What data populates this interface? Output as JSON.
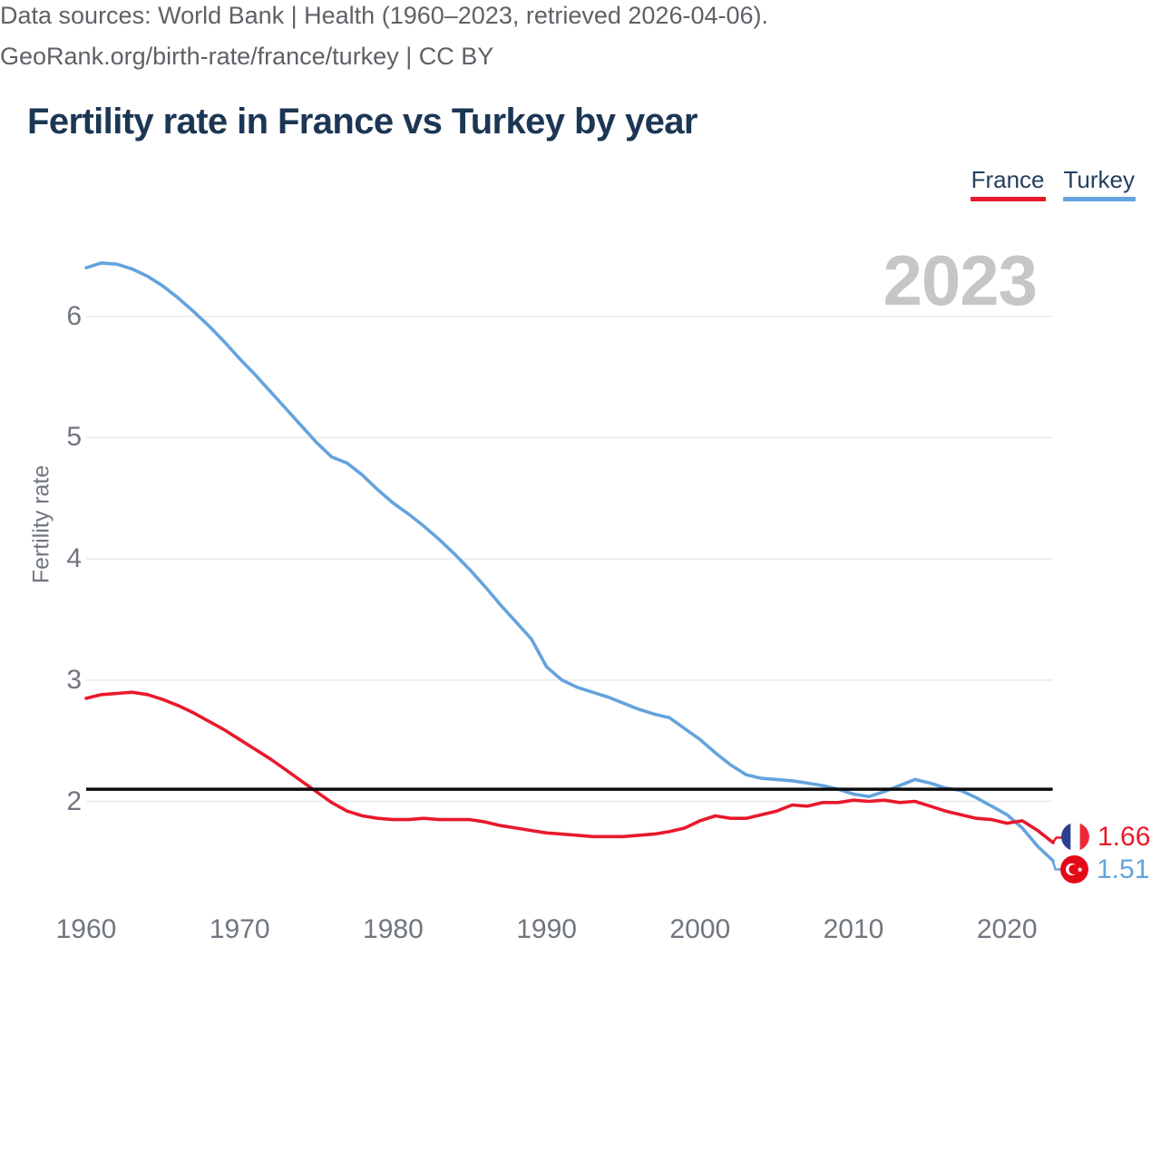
{
  "title": "Fertility rate in France vs Turkey by year",
  "watermark_year": "2023",
  "legend": {
    "items": [
      {
        "label": "France",
        "color": "#e8192b"
      },
      {
        "label": "Turkey",
        "color": "#64a3dd"
      }
    ]
  },
  "end_labels": [
    {
      "series": "France",
      "value": "1.66",
      "flag_icon": "france-flag-icon",
      "text_color": "#e8192b"
    },
    {
      "series": "Turkey",
      "value": "1.51",
      "flag_icon": "turkey-flag-icon",
      "text_color": "#64a3dd"
    }
  ],
  "footer": {
    "line1": "Data sources: World Bank | Health (1960–2023, retrieved 2026-04-06).",
    "line2": "GeoRank.org/birth-rate/france/turkey | CC BY"
  },
  "colors": {
    "france": "#e8192b",
    "turkey": "#64a3dd",
    "reference_line": "#0a0a0a",
    "grid": "#e9e9e9",
    "title_text": "#1c3654",
    "axis_text": "#70767f",
    "footer_text": "#5e6166",
    "watermark": "#c6c6c6",
    "france_flag": [
      "#2a3f90",
      "#ffffff",
      "#ed2939"
    ],
    "turkey_flag": "#e30a17"
  },
  "chart_data": {
    "type": "line",
    "title": "Fertility rate in France vs Turkey by year",
    "xlabel": "",
    "ylabel": "Fertility rate",
    "grid": true,
    "legend_position": "top-right",
    "xticks": [
      1960,
      1970,
      1980,
      1990,
      2000,
      2010,
      2020
    ],
    "yticks": [
      2,
      3,
      4,
      5,
      6
    ],
    "xlim": [
      1960,
      2023
    ],
    "ylim": [
      1.4,
      6.6
    ],
    "reference_line": 2.1,
    "x": [
      1960,
      1961,
      1962,
      1963,
      1964,
      1965,
      1966,
      1967,
      1968,
      1969,
      1970,
      1971,
      1972,
      1973,
      1974,
      1975,
      1976,
      1977,
      1978,
      1979,
      1980,
      1981,
      1982,
      1983,
      1984,
      1985,
      1986,
      1987,
      1988,
      1989,
      1990,
      1991,
      1992,
      1993,
      1994,
      1995,
      1996,
      1997,
      1998,
      1999,
      2000,
      2001,
      2002,
      2003,
      2004,
      2005,
      2006,
      2007,
      2008,
      2009,
      2010,
      2011,
      2012,
      2013,
      2014,
      2015,
      2016,
      2017,
      2018,
      2019,
      2020,
      2021,
      2022,
      2023
    ],
    "series": [
      {
        "name": "France",
        "color": "#e8192b",
        "final_value": 1.66,
        "values": [
          2.85,
          2.88,
          2.89,
          2.9,
          2.88,
          2.84,
          2.79,
          2.73,
          2.66,
          2.59,
          2.51,
          2.43,
          2.35,
          2.26,
          2.17,
          2.08,
          1.99,
          1.92,
          1.88,
          1.86,
          1.85,
          1.85,
          1.86,
          1.85,
          1.85,
          1.85,
          1.83,
          1.8,
          1.78,
          1.76,
          1.74,
          1.73,
          1.72,
          1.71,
          1.71,
          1.71,
          1.72,
          1.73,
          1.75,
          1.78,
          1.84,
          1.88,
          1.86,
          1.86,
          1.89,
          1.92,
          1.97,
          1.96,
          1.99,
          1.99,
          2.01,
          2.0,
          2.01,
          1.99,
          2.0,
          1.96,
          1.92,
          1.89,
          1.86,
          1.85,
          1.82,
          1.84,
          1.76,
          1.66
        ]
      },
      {
        "name": "Turkey",
        "color": "#64a3dd",
        "final_value": 1.51,
        "values": [
          6.4,
          6.44,
          6.43,
          6.39,
          6.33,
          6.25,
          6.15,
          6.04,
          5.92,
          5.79,
          5.65,
          5.52,
          5.38,
          5.24,
          5.1,
          4.96,
          4.84,
          4.79,
          4.69,
          4.57,
          4.46,
          4.37,
          4.27,
          4.16,
          4.04,
          3.91,
          3.77,
          3.62,
          3.48,
          3.34,
          3.11,
          3.0,
          2.94,
          2.9,
          2.86,
          2.81,
          2.76,
          2.72,
          2.69,
          2.6,
          2.51,
          2.4,
          2.3,
          2.22,
          2.19,
          2.18,
          2.17,
          2.15,
          2.13,
          2.1,
          2.06,
          2.04,
          2.08,
          2.13,
          2.18,
          2.15,
          2.11,
          2.09,
          2.03,
          1.96,
          1.89,
          1.78,
          1.63,
          1.51
        ]
      }
    ]
  }
}
